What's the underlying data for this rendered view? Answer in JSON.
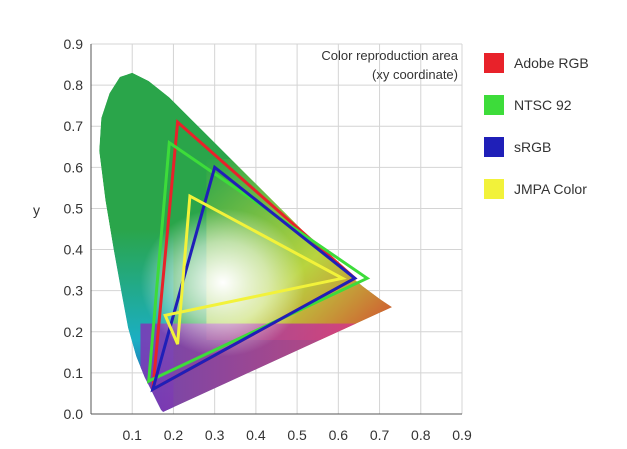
{
  "chart_data": {
    "type": "scatter",
    "title": "Color reproduction area",
    "subtitle": "(xy coordinate)",
    "xlabel": "",
    "ylabel": "y",
    "xlim": [
      0,
      0.9
    ],
    "ylim": [
      0,
      0.9
    ],
    "x_ticks": [
      "0.1",
      "0.2",
      "0.3",
      "0.4",
      "0.5",
      "0.6",
      "0.7",
      "0.8",
      "0.9"
    ],
    "y_ticks": [
      "0.0",
      "0.1",
      "0.2",
      "0.3",
      "0.4",
      "0.5",
      "0.6",
      "0.7",
      "0.8",
      "0.9"
    ],
    "grid": true,
    "legend_position": "right",
    "spectral_locus": [
      [
        0.175,
        0.005
      ],
      [
        0.17,
        0.01
      ],
      [
        0.16,
        0.03
      ],
      [
        0.145,
        0.06
      ],
      [
        0.13,
        0.09
      ],
      [
        0.11,
        0.14
      ],
      [
        0.09,
        0.21
      ],
      [
        0.075,
        0.29
      ],
      [
        0.055,
        0.4
      ],
      [
        0.035,
        0.52
      ],
      [
        0.02,
        0.64
      ],
      [
        0.025,
        0.72
      ],
      [
        0.045,
        0.78
      ],
      [
        0.07,
        0.82
      ],
      [
        0.1,
        0.83
      ],
      [
        0.14,
        0.81
      ],
      [
        0.19,
        0.77
      ],
      [
        0.25,
        0.71
      ],
      [
        0.32,
        0.64
      ],
      [
        0.39,
        0.57
      ],
      [
        0.46,
        0.5
      ],
      [
        0.53,
        0.43
      ],
      [
        0.6,
        0.36
      ],
      [
        0.66,
        0.31
      ],
      [
        0.7,
        0.28
      ],
      [
        0.73,
        0.26
      ]
    ],
    "series": [
      {
        "name": "Adobe RGB",
        "color": "#e8222a",
        "points": [
          [
            0.64,
            0.33
          ],
          [
            0.21,
            0.71
          ],
          [
            0.15,
            0.06
          ]
        ]
      },
      {
        "name": "NTSC 92",
        "color": "#3ddc3a",
        "points": [
          [
            0.67,
            0.33
          ],
          [
            0.19,
            0.66
          ],
          [
            0.14,
            0.08
          ]
        ]
      },
      {
        "name": "sRGB",
        "color": "#1f1fb8",
        "points": [
          [
            0.64,
            0.33
          ],
          [
            0.3,
            0.6
          ],
          [
            0.15,
            0.06
          ]
        ]
      },
      {
        "name": "JMPA Color",
        "color": "#f2f23a",
        "points": [
          [
            0.61,
            0.33
          ],
          [
            0.24,
            0.53
          ],
          [
            0.21,
            0.17
          ],
          [
            0.18,
            0.24
          ]
        ]
      }
    ]
  }
}
